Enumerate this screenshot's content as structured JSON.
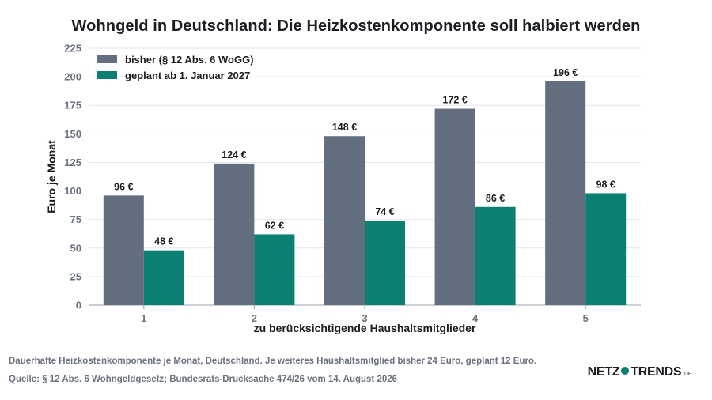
{
  "chart_data": {
    "type": "bar",
    "title": "Wohngeld in Deutschland: Die Heizkostenkomponente soll halbiert werden",
    "xlabel": "zu berücksichtigende Haushaltsmitglieder",
    "ylabel": "Euro je Monat",
    "categories": [
      "1",
      "2",
      "3",
      "4",
      "5"
    ],
    "ylim": [
      0,
      225
    ],
    "yticks": [
      0,
      25,
      50,
      75,
      100,
      125,
      150,
      175,
      200,
      225
    ],
    "grid": true,
    "legend_position": "top-left",
    "value_suffix": " €",
    "series": [
      {
        "name": "bisher (§ 12 Abs. 6 WoGG)",
        "color": "#636e7e",
        "values": [
          96,
          124,
          148,
          172,
          196
        ]
      },
      {
        "name": "geplant ab 1. Januar 2027",
        "color": "#0b7f71",
        "values": [
          48,
          62,
          74,
          86,
          98
        ]
      }
    ]
  },
  "footer": {
    "note": "Dauerhafte Heizkostenkomponente je Monat, Deutschland. Je weiteres Haushaltsmitglied bisher 24 Euro, geplant 12 Euro.",
    "source": "Quelle: § 12 Abs. 6 Wohngeldgesetz; Bundesrats-Drucksache 474/26 vom 14. August 2026"
  },
  "logo": {
    "part1": "NETZ",
    "part2": "TRENDS",
    "suffix": ".DE"
  }
}
